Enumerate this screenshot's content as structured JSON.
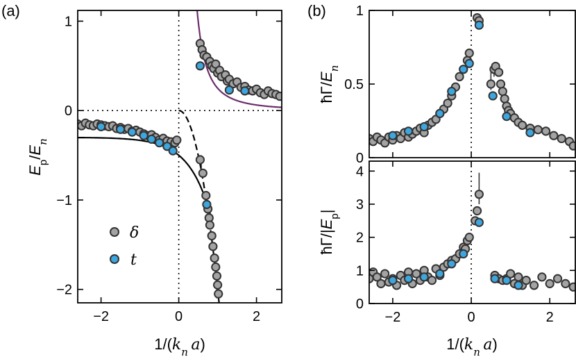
{
  "colors": {
    "delta_fill": "#a3a3a3",
    "t_fill": "#3ea6de",
    "marker_stroke": "#333333",
    "theory_purple": "#6b2d6b",
    "line": "#000000"
  },
  "chart_data": [
    {
      "id": "a",
      "panel_label": "(a)",
      "type": "scatter",
      "xlabel": "1/(k_n a)",
      "ylabel": "E_p/E_n",
      "xlim": [
        -2.6,
        2.65
      ],
      "ylim": [
        -2.15,
        1.12
      ],
      "xticks": [
        -2,
        0,
        2
      ],
      "xtick_labels": [
        "−2",
        "0",
        "2"
      ],
      "yticks": [
        1,
        0,
        -1,
        -2
      ],
      "ytick_labels": [
        "1",
        "0",
        "−1",
        "−2"
      ],
      "legend": [
        {
          "symbol": "delta",
          "label": "δ"
        },
        {
          "symbol": "t",
          "label": "t"
        }
      ],
      "series": [
        {
          "name": "δ",
          "points": [
            [
              -2.6,
              -0.15
            ],
            [
              -2.5,
              -0.17
            ],
            [
              -2.4,
              -0.14
            ],
            [
              -2.3,
              -0.16
            ],
            [
              -2.2,
              -0.17
            ],
            [
              -2.1,
              -0.15
            ],
            [
              -2.0,
              -0.16
            ],
            [
              -1.9,
              -0.17
            ],
            [
              -1.8,
              -0.18
            ],
            [
              -1.7,
              -0.17
            ],
            [
              -1.6,
              -0.2
            ],
            [
              -1.5,
              -0.19
            ],
            [
              -1.4,
              -0.21
            ],
            [
              -1.3,
              -0.2
            ],
            [
              -1.2,
              -0.23
            ],
            [
              -1.1,
              -0.22
            ],
            [
              -1.0,
              -0.24
            ],
            [
              -0.9,
              -0.26
            ],
            [
              -0.8,
              -0.28
            ],
            [
              -0.7,
              -0.27
            ],
            [
              -0.6,
              -0.3
            ],
            [
              -0.5,
              -0.33
            ],
            [
              -0.4,
              -0.31
            ],
            [
              -0.35,
              -0.36
            ],
            [
              -0.3,
              -0.34
            ],
            [
              -0.2,
              -0.35
            ],
            [
              -0.1,
              -0.36
            ],
            [
              -0.05,
              -0.33
            ],
            [
              0.55,
              0.75
            ],
            [
              0.6,
              0.68
            ],
            [
              0.65,
              0.62
            ],
            [
              0.72,
              0.6
            ],
            [
              0.8,
              0.55
            ],
            [
              0.85,
              0.5
            ],
            [
              0.9,
              0.47
            ],
            [
              0.95,
              0.52
            ],
            [
              1.0,
              0.42
            ],
            [
              1.05,
              0.45
            ],
            [
              1.1,
              0.38
            ],
            [
              1.2,
              0.4
            ],
            [
              1.25,
              0.33
            ],
            [
              1.3,
              0.35
            ],
            [
              1.4,
              0.3
            ],
            [
              1.5,
              0.32
            ],
            [
              1.6,
              0.26
            ],
            [
              1.7,
              0.27
            ],
            [
              1.8,
              0.23
            ],
            [
              1.9,
              0.22
            ],
            [
              2.0,
              0.24
            ],
            [
              2.1,
              0.2
            ],
            [
              2.2,
              0.18
            ],
            [
              2.3,
              0.22
            ],
            [
              2.4,
              0.19
            ],
            [
              2.5,
              0.18
            ],
            [
              2.6,
              0.16
            ],
            [
              0.55,
              -0.55
            ],
            [
              0.62,
              -0.7
            ],
            [
              0.7,
              -0.95
            ],
            [
              0.75,
              -1.1
            ],
            [
              0.78,
              -1.2
            ],
            [
              0.8,
              -1.28
            ],
            [
              0.85,
              -1.4
            ],
            [
              0.88,
              -1.52
            ],
            [
              0.92,
              -1.65
            ],
            [
              0.95,
              -1.75
            ],
            [
              0.98,
              -1.85
            ],
            [
              1.0,
              -1.95
            ],
            [
              1.02,
              -2.05
            ]
          ],
          "error_bars": [
            {
              "x": 0.58,
              "y0": -0.5,
              "y1": -0.68
            },
            {
              "x": 0.76,
              "y0": -1.05,
              "y1": -1.3
            },
            {
              "x": 0.98,
              "y0": -1.8,
              "y1": -2.1
            }
          ]
        },
        {
          "name": "t",
          "points": [
            [
              -2.0,
              -0.18
            ],
            [
              -1.5,
              -0.21
            ],
            [
              -1.2,
              -0.24
            ],
            [
              -0.9,
              -0.28
            ],
            [
              -0.7,
              -0.32
            ],
            [
              -0.5,
              -0.36
            ],
            [
              -0.3,
              -0.4
            ],
            [
              -0.15,
              -0.45
            ],
            [
              0.55,
              0.5
            ],
            [
              1.3,
              0.23
            ],
            [
              1.7,
              0.22
            ],
            [
              0.72,
              -1.05
            ]
          ]
        }
      ],
      "theory": [
        {
          "name": "theory-purple-upper",
          "style": "solid-purple",
          "equation": "1/(4·x²)",
          "x_range": [
            0.35,
            2.65
          ]
        },
        {
          "name": "theory-black-dashed",
          "style": "dashed",
          "equation": "−2·x²",
          "x_range": [
            0.0,
            1.06
          ]
        },
        {
          "name": "theory-black-solid",
          "style": "solid",
          "equation": "−0.3 − 0.2·exp(1.8·x)",
          "x_range": [
            -2.6,
            0.83
          ]
        }
      ],
      "reference_lines": [
        "horizontal dotted at y=0",
        "vertical dotted at x=0"
      ]
    },
    {
      "id": "b-top",
      "panel_label": "(b)",
      "type": "scatter",
      "xlabel": "",
      "ylabel": "ħΓ/E_n",
      "xlim": [
        -2.6,
        2.65
      ],
      "ylim": [
        0,
        1.0
      ],
      "yticks": [
        0,
        0.5,
        1
      ],
      "ytick_labels": [
        "0",
        "0.5",
        "1"
      ],
      "series": [
        {
          "name": "δ",
          "points": [
            [
              -2.6,
              0.13
            ],
            [
              -2.5,
              0.11
            ],
            [
              -2.4,
              0.14
            ],
            [
              -2.3,
              0.12
            ],
            [
              -2.2,
              0.1
            ],
            [
              -2.1,
              0.14
            ],
            [
              -2.0,
              0.12
            ],
            [
              -1.9,
              0.15
            ],
            [
              -1.8,
              0.13
            ],
            [
              -1.7,
              0.17
            ],
            [
              -1.6,
              0.14
            ],
            [
              -1.5,
              0.16
            ],
            [
              -1.4,
              0.18
            ],
            [
              -1.3,
              0.2
            ],
            [
              -1.2,
              0.17
            ],
            [
              -1.1,
              0.22
            ],
            [
              -1.0,
              0.24
            ],
            [
              -0.9,
              0.26
            ],
            [
              -0.8,
              0.3
            ],
            [
              -0.7,
              0.33
            ],
            [
              -0.6,
              0.37
            ],
            [
              -0.5,
              0.42
            ],
            [
              -0.4,
              0.48
            ],
            [
              -0.3,
              0.55
            ],
            [
              -0.2,
              0.6
            ],
            [
              -0.1,
              0.66
            ],
            [
              -0.05,
              0.71
            ],
            [
              0.15,
              0.95
            ],
            [
              0.2,
              0.93
            ],
            [
              0.5,
              0.5
            ],
            [
              0.58,
              0.6
            ],
            [
              0.62,
              0.62
            ],
            [
              0.7,
              0.58
            ],
            [
              0.75,
              0.5
            ],
            [
              0.8,
              0.45
            ],
            [
              0.85,
              0.4
            ],
            [
              0.9,
              0.35
            ],
            [
              0.95,
              0.32
            ],
            [
              1.0,
              0.3
            ],
            [
              1.1,
              0.27
            ],
            [
              1.2,
              0.24
            ],
            [
              1.3,
              0.22
            ],
            [
              1.5,
              0.2
            ],
            [
              1.7,
              0.19
            ],
            [
              1.9,
              0.18
            ],
            [
              2.1,
              0.15
            ],
            [
              2.3,
              0.13
            ],
            [
              2.5,
              0.11
            ],
            [
              2.6,
              0.08
            ]
          ],
          "error_bars": [
            {
              "x": 0.5,
              "y0": 0.46,
              "y1": 0.58
            },
            {
              "x": 0.58,
              "y0": 0.55,
              "y1": 0.64
            }
          ]
        },
        {
          "name": "t",
          "points": [
            [
              -2.0,
              0.15
            ],
            [
              -1.6,
              0.18
            ],
            [
              -1.2,
              0.21
            ],
            [
              -0.8,
              0.3
            ],
            [
              -0.5,
              0.45
            ],
            [
              -0.2,
              0.6
            ],
            [
              -0.05,
              0.64
            ],
            [
              0.2,
              0.9
            ],
            [
              0.55,
              0.42
            ],
            [
              0.9,
              0.28
            ],
            [
              1.5,
              0.17
            ]
          ]
        }
      ],
      "reference_lines": [
        "vertical dotted at x=0"
      ]
    },
    {
      "id": "b-bottom",
      "panel_label": "",
      "type": "scatter",
      "xlabel": "1/(k_n a)",
      "ylabel": "ħΓ/|E_p|",
      "xlim": [
        -2.6,
        2.65
      ],
      "ylim": [
        0,
        4.3
      ],
      "xticks": [
        -2,
        0,
        2
      ],
      "xtick_labels": [
        "−2",
        "0",
        "2"
      ],
      "yticks": [
        0,
        1,
        2,
        3,
        4
      ],
      "ytick_labels": [
        "0",
        "1",
        "2",
        "3",
        "4"
      ],
      "series": [
        {
          "name": "δ",
          "points": [
            [
              -2.6,
              0.75
            ],
            [
              -2.5,
              0.95
            ],
            [
              -2.4,
              0.8
            ],
            [
              -2.3,
              0.6
            ],
            [
              -2.2,
              0.9
            ],
            [
              -2.1,
              0.65
            ],
            [
              -2.0,
              0.75
            ],
            [
              -1.9,
              0.55
            ],
            [
              -1.8,
              0.85
            ],
            [
              -1.7,
              0.7
            ],
            [
              -1.6,
              0.95
            ],
            [
              -1.5,
              0.6
            ],
            [
              -1.4,
              0.9
            ],
            [
              -1.3,
              0.7
            ],
            [
              -1.2,
              1.0
            ],
            [
              -1.1,
              0.8
            ],
            [
              -1.0,
              0.7
            ],
            [
              -0.9,
              1.05
            ],
            [
              -0.8,
              0.85
            ],
            [
              -0.7,
              1.1
            ],
            [
              -0.6,
              1.2
            ],
            [
              -0.5,
              1.3
            ],
            [
              -0.4,
              1.35
            ],
            [
              -0.3,
              1.5
            ],
            [
              -0.2,
              1.7
            ],
            [
              -0.15,
              1.65
            ],
            [
              -0.1,
              1.9
            ],
            [
              -0.05,
              2.0
            ],
            [
              0.1,
              2.5
            ],
            [
              0.15,
              2.8
            ],
            [
              0.2,
              3.3
            ],
            [
              0.6,
              0.85
            ],
            [
              0.7,
              0.75
            ],
            [
              0.8,
              0.7
            ],
            [
              0.9,
              0.75
            ],
            [
              1.0,
              0.9
            ],
            [
              1.1,
              0.6
            ],
            [
              1.2,
              0.8
            ],
            [
              1.3,
              0.55
            ],
            [
              1.4,
              0.7
            ],
            [
              1.6,
              0.55
            ],
            [
              1.8,
              0.8
            ],
            [
              2.0,
              0.6
            ],
            [
              2.2,
              0.75
            ],
            [
              2.4,
              0.6
            ],
            [
              2.6,
              0.5
            ]
          ],
          "error_bars": [
            {
              "x": 0.2,
              "y0": 3.0,
              "y1": 3.95
            }
          ]
        },
        {
          "name": "t",
          "points": [
            [
              -2.0,
              0.7
            ],
            [
              -1.6,
              0.75
            ],
            [
              -1.2,
              0.8
            ],
            [
              -0.8,
              0.9
            ],
            [
              -0.5,
              1.2
            ],
            [
              -0.2,
              1.5
            ],
            [
              0.2,
              2.45
            ],
            [
              0.6,
              0.75
            ],
            [
              0.9,
              0.7
            ],
            [
              1.2,
              0.55
            ]
          ]
        }
      ],
      "reference_lines": [
        "vertical dotted at x=0"
      ]
    }
  ]
}
